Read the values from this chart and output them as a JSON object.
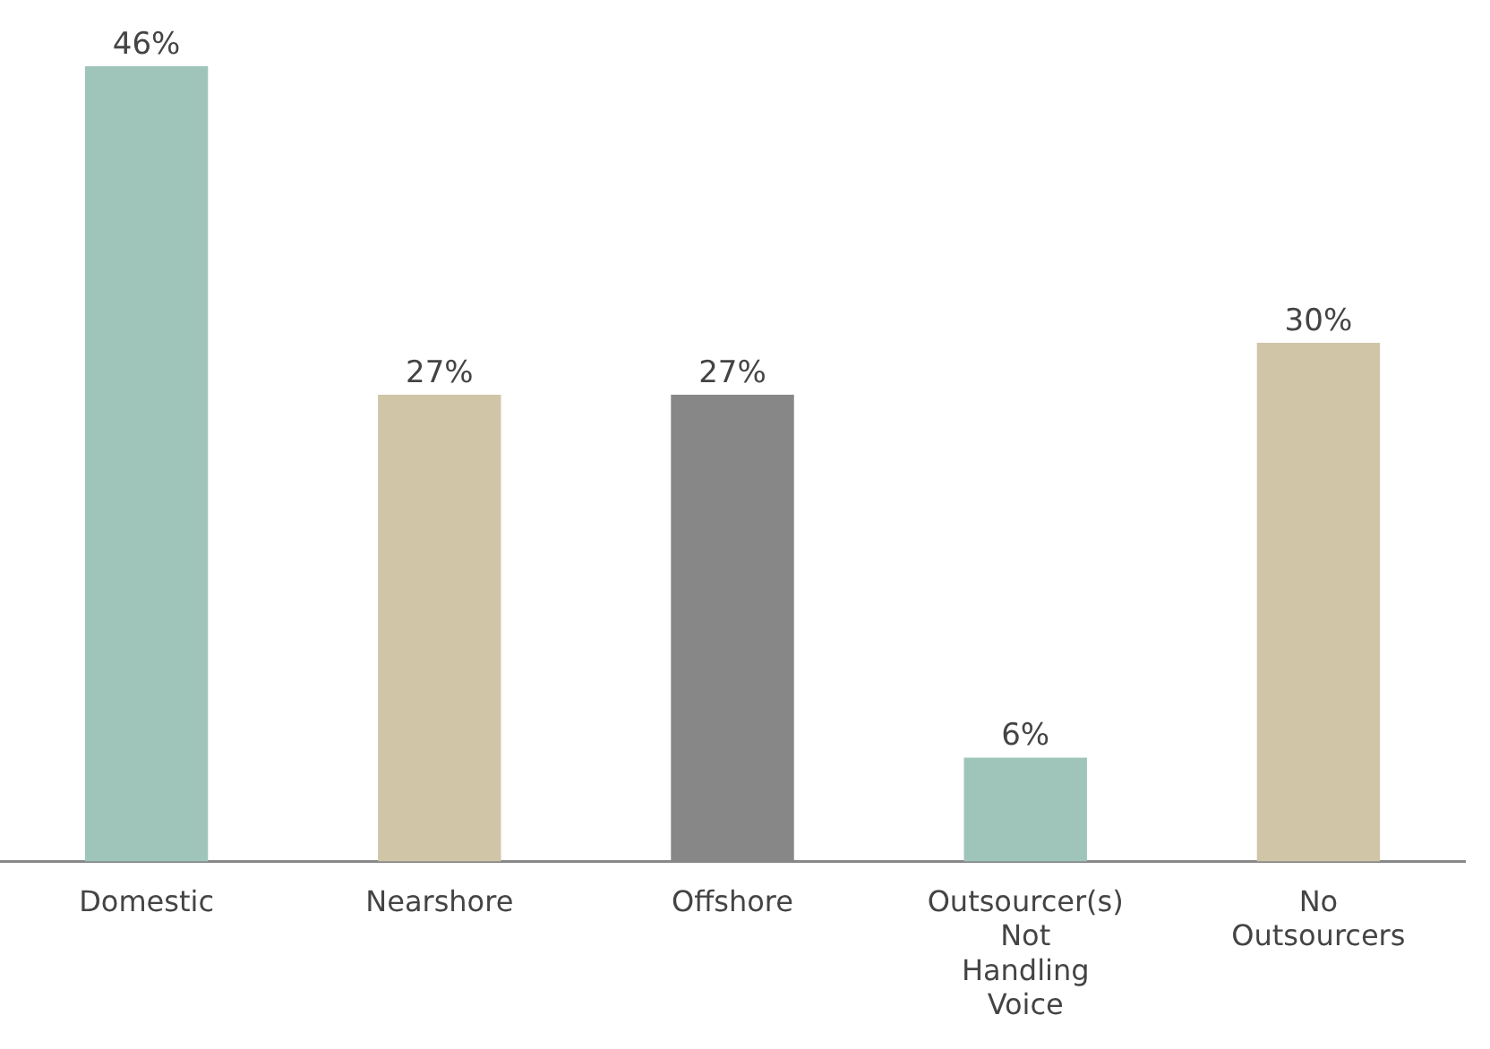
{
  "chart_data": {
    "type": "bar",
    "categories": [
      "Domestic",
      "Nearshore",
      "Offshore",
      "Outsourcer(s) Not Handling Voice",
      "No Outsourcers"
    ],
    "values": [
      46,
      27,
      27,
      6,
      30
    ],
    "colors": [
      "#9fc5bb",
      "#d1c5a8",
      "#878787",
      "#9fc5bb",
      "#d1c5a8"
    ],
    "value_labels": [
      "46%",
      "27%",
      "27%",
      "6%",
      "30%"
    ],
    "grid": false,
    "legend": false
  }
}
